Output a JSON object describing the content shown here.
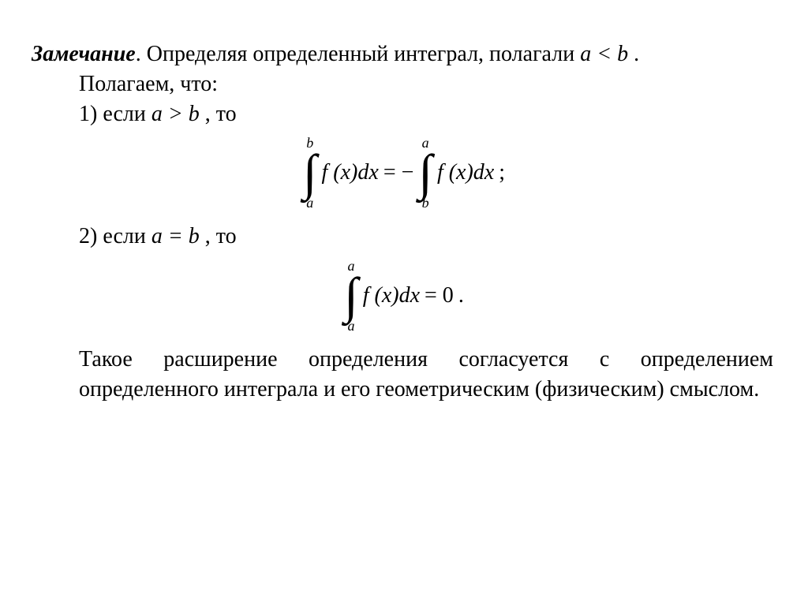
{
  "heading_bold": "Замечание",
  "heading_rest": ". Определяя определенный интеграл, полагали ",
  "heading_math": "a < b",
  "heading_tail": " .",
  "assume": "Полагаем, что:",
  "item1_pre": "1) если  ",
  "item1_math": "a > b",
  "item1_post": " ,  то",
  "formula1": {
    "left": {
      "lower": "a",
      "upper": "b",
      "body": "f (x)dx"
    },
    "eq": " = −",
    "right": {
      "lower": "b",
      "upper": "a",
      "body": "f (x)dx"
    },
    "tail": ";"
  },
  "item2_pre": "2) если ",
  "item2_math": "a = b",
  "item2_post": " ,  то",
  "formula2": {
    "left": {
      "lower": "a",
      "upper": "a",
      "body": "f (x)dx"
    },
    "eq": " = 0",
    "tail": "."
  },
  "closing": "Такое расширение определения согласуется с определением определенного интеграла и его геометрическим (физическим) смыслом."
}
